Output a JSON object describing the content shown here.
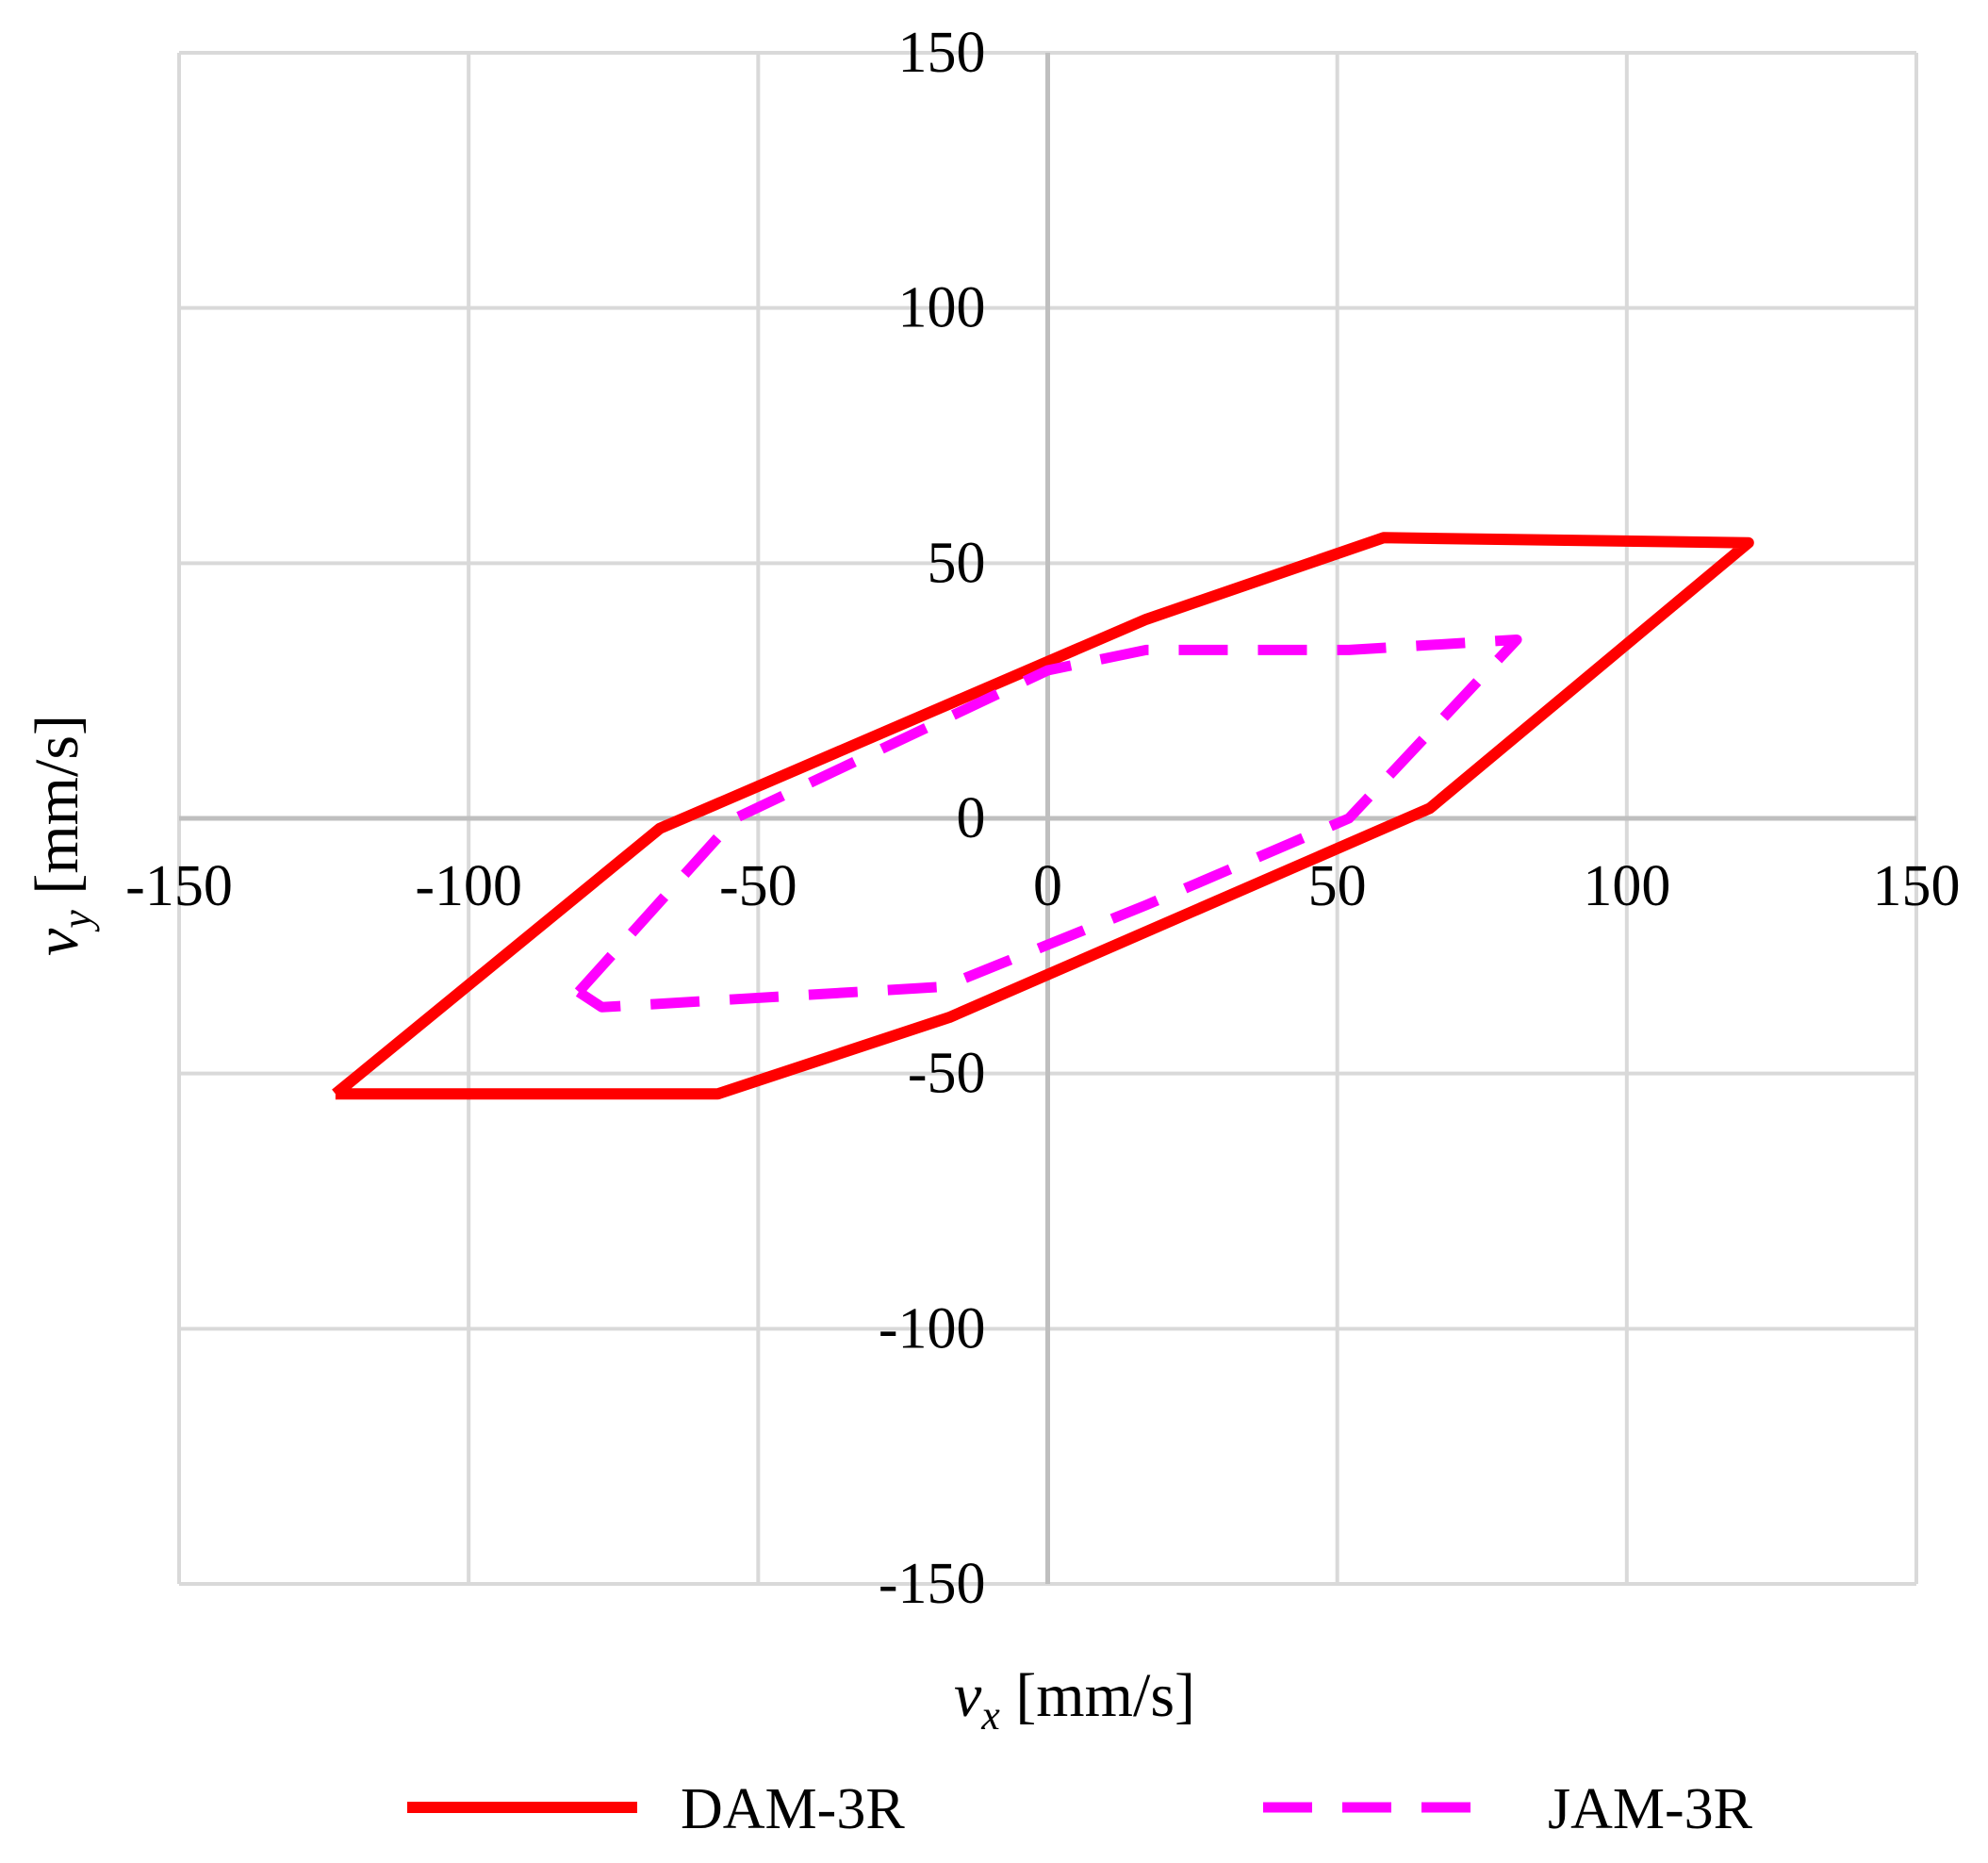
{
  "chart_data": {
    "type": "line",
    "xlabel": {
      "var": "v",
      "sub": "x",
      "unit": " [mm/s]"
    },
    "ylabel": {
      "var": "v",
      "sub": "y",
      "unit": " [mm/s]"
    },
    "xlim": [
      -150,
      150
    ],
    "ylim": [
      -150,
      150
    ],
    "xticks": [
      -150,
      -100,
      -50,
      0,
      50,
      100,
      150
    ],
    "yticks": [
      -150,
      -100,
      -50,
      0,
      50,
      100,
      150
    ],
    "grid": true,
    "legend_position": "bottom",
    "series": [
      {
        "name": "DAM-3R",
        "color": "#ff0000",
        "style": "solid",
        "x": [
          -123,
          -67,
          17,
          58,
          121,
          66,
          -17,
          -57,
          -123
        ],
        "y": [
          -54,
          -2,
          39,
          55,
          54,
          2,
          -39,
          -54,
          -54
        ]
      },
      {
        "name": "JAM-3R",
        "color": "#ff00ff",
        "style": "dashed",
        "x": [
          -81,
          -54,
          0,
          17,
          52,
          81,
          52,
          17,
          -18,
          -77,
          -81
        ],
        "y": [
          -34,
          0,
          29,
          33,
          33,
          35,
          0,
          -17,
          -33,
          -37,
          -34
        ]
      }
    ]
  }
}
